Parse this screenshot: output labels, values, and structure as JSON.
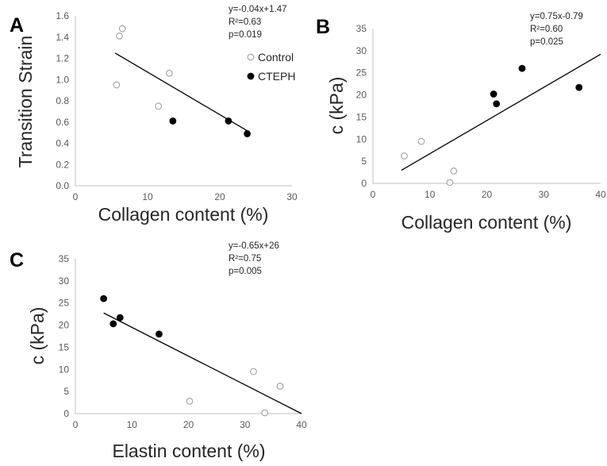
{
  "colors": {
    "control_marker": "#a6a6a6",
    "cteph_marker": "#000000",
    "axis": "#bfbfbf",
    "trendline": "#000000"
  },
  "chart_data": [
    {
      "panel": "A",
      "type": "scatter",
      "xlabel": "Collagen content (%)",
      "ylabel": "Transition Strain",
      "xlim": [
        0,
        30
      ],
      "ylim": [
        0,
        1.6
      ],
      "xticks": [
        "0",
        "10",
        "20",
        "30"
      ],
      "yticks": [
        "0.0",
        "0.2",
        "0.4",
        "0.6",
        "0.8",
        "1.0",
        "1.2",
        "1.4",
        "1.6"
      ],
      "annotation": [
        "y=-0.04x+1.47",
        "R²=0.63",
        "p=0.019"
      ],
      "legend": {
        "placement": "top-right",
        "entries": [
          "Control",
          "CTEPH"
        ]
      },
      "series": [
        {
          "name": "Control",
          "marker": "open-circle",
          "points": [
            [
              5.7,
              0.95
            ],
            [
              6.1,
              1.41
            ],
            [
              6.5,
              1.48
            ],
            [
              11.5,
              0.75
            ],
            [
              13.0,
              1.06
            ]
          ]
        },
        {
          "name": "CTEPH",
          "marker": "filled-circle",
          "points": [
            [
              13.5,
              0.61
            ],
            [
              21.2,
              0.61
            ],
            [
              23.8,
              0.49
            ]
          ]
        }
      ],
      "trendline": {
        "x": [
          5.5,
          23.8
        ]
      }
    },
    {
      "panel": "B",
      "type": "scatter",
      "xlabel": "Collagen content (%)",
      "ylabel": "c (kPa)",
      "xlim": [
        0,
        40
      ],
      "ylim": [
        0,
        35
      ],
      "xticks": [
        "0",
        "10",
        "20",
        "30",
        "40"
      ],
      "yticks": [
        "0",
        "5",
        "10",
        "15",
        "20",
        "25",
        "30",
        "35"
      ],
      "annotation": [
        "y=0.75x-0.79",
        "R²=0.60",
        "p=0.025"
      ],
      "series": [
        {
          "marker": "open-circle",
          "points": [
            [
              5.5,
              6.2
            ],
            [
              8.5,
              9.5
            ],
            [
              13.5,
              0.2
            ],
            [
              14.2,
              2.8
            ]
          ]
        },
        {
          "marker": "filled-circle",
          "points": [
            [
              21.2,
              20.2
            ],
            [
              21.7,
              18.0
            ],
            [
              26.2,
              26.0
            ],
            [
              36.2,
              21.7
            ]
          ]
        }
      ],
      "trendline": {
        "x": [
          5.0,
          40.0
        ]
      }
    },
    {
      "panel": "C",
      "type": "scatter",
      "xlabel": "Elastin content (%)",
      "ylabel": "c (kPa)",
      "xlim": [
        0,
        40
      ],
      "ylim": [
        0,
        35
      ],
      "xticks": [
        "0",
        "10",
        "20",
        "30",
        "40"
      ],
      "yticks": [
        "0",
        "5",
        "10",
        "15",
        "20",
        "25",
        "30",
        "35"
      ],
      "annotation": [
        "y=-0.65x+26",
        "R²=0.75",
        "p=0.005"
      ],
      "series": [
        {
          "marker": "open-circle",
          "points": [
            [
              20.2,
              2.8
            ],
            [
              31.5,
              9.5
            ],
            [
              33.5,
              0.2
            ],
            [
              36.2,
              6.2
            ]
          ]
        },
        {
          "marker": "filled-circle",
          "points": [
            [
              5.0,
              26.0
            ],
            [
              6.7,
              20.3
            ],
            [
              7.9,
              21.7
            ],
            [
              14.8,
              18.0
            ]
          ]
        }
      ],
      "trendline": {
        "x": [
          5.0,
          40.0
        ]
      }
    }
  ]
}
